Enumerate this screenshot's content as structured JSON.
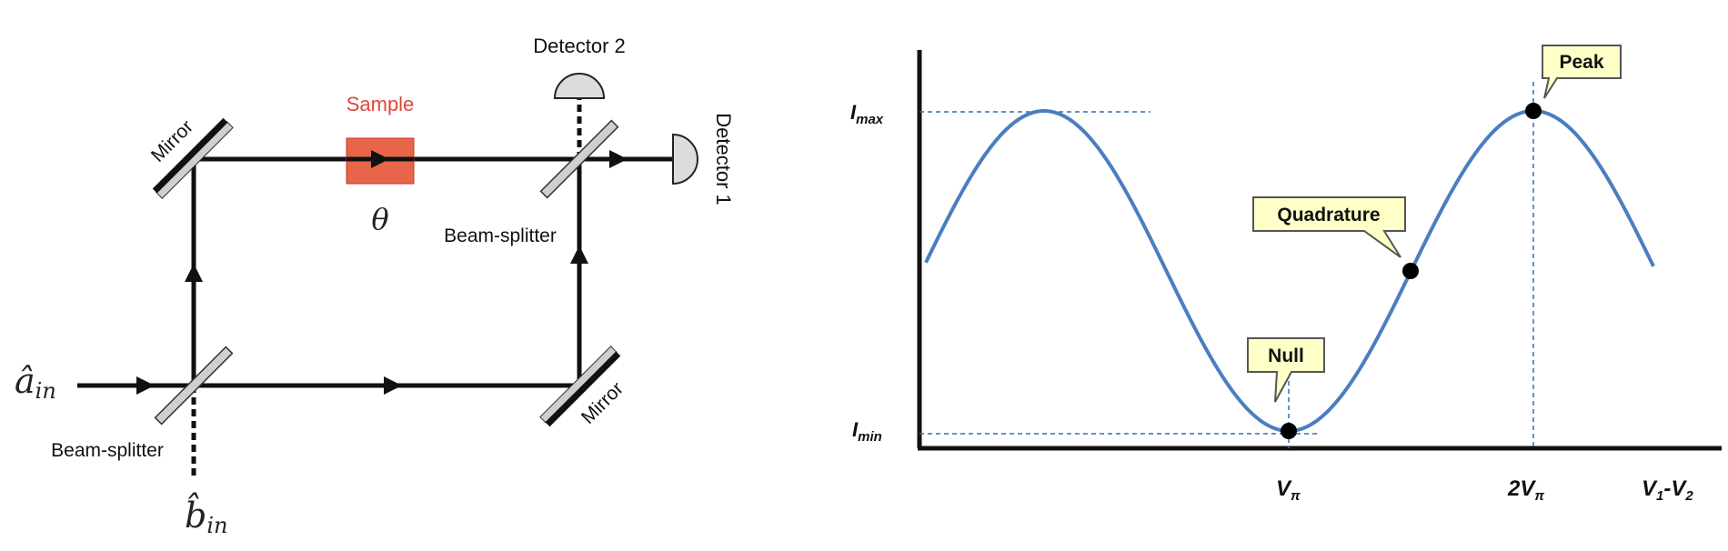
{
  "interferometer": {
    "labels": {
      "sample": "Sample",
      "theta": "θ",
      "detector2": "Detector 2",
      "detector1": "Detector 1",
      "mirror_top": "Mirror",
      "mirror_bottom": "Mirror",
      "beam_splitter_top": "Beam-splitter",
      "beam_splitter_bottom": "Beam-splitter",
      "input_a": "â",
      "input_a_sub": "in",
      "input_b": "b̂",
      "input_b_sub": "in"
    },
    "colors": {
      "sample": "#e8654a",
      "sample_label": "#e0463a",
      "beam": "#111111",
      "splitter": "#cfcfcf",
      "mirror": "#111111"
    }
  },
  "transfer_curve": {
    "y_labels": {
      "max": "I",
      "max_sub": "max",
      "min": "I",
      "min_sub": "min"
    },
    "x_labels": {
      "v_pi": "V",
      "v_pi_sub": "π",
      "two_v_pi": "2V",
      "two_v_pi_sub": "π",
      "axis": "V",
      "axis_sub1": "1",
      "axis_dash": "-V",
      "axis_sub2": "2"
    },
    "callouts": {
      "peak": "Peak",
      "quadrature": "Quadrature",
      "null": "Null"
    },
    "colors": {
      "curve": "#4a7ec0",
      "guide": "#3a6bb0",
      "callout_fill": "#ffffc8",
      "callout_stroke": "#555555"
    }
  }
}
